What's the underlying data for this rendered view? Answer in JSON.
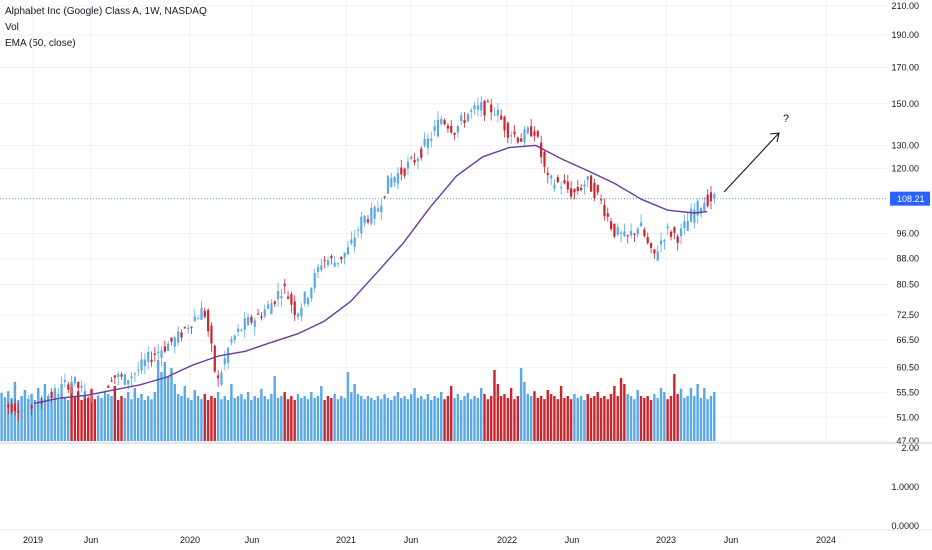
{
  "header": {
    "symbol_line": "Alphabet Inc (Google) Class A, 1W, NASDAQ",
    "volume_line": "Vol",
    "ema_line": "EMA (50, close)"
  },
  "colors": {
    "up": "#5aa8e6",
    "down": "#c9262f",
    "ema": "#6a3d9a",
    "price_line": "#3a8fd6",
    "price_badge": "#2962ff",
    "grid": "#eef0f3",
    "axis_text": "#131722"
  },
  "annotation": {
    "text": "?"
  },
  "chart_data": {
    "type": "line",
    "title": "Alphabet Inc (Google) Class A, 1W, NASDAQ",
    "price_scale": "log",
    "ylim": [
      47,
      210
    ],
    "y_ticks": [
      "210.00",
      "190.00",
      "170.00",
      "150.00",
      "130.00",
      "120.00",
      "108.21",
      "96.00",
      "88.00",
      "80.50",
      "72.50",
      "66.50",
      "60.50",
      "55.50",
      "51.00",
      "47.00"
    ],
    "current_price": "108.21",
    "volume_ticks": [
      "2.00",
      "1.0000",
      "0.0000"
    ],
    "x_ticks": [
      "2019",
      "Jun",
      "2020",
      "Jun",
      "2021",
      "Jun",
      "2022",
      "Jun",
      "2023",
      "Jun",
      "2024"
    ],
    "series": [
      {
        "name": "Price (close)",
        "x": [
          "2019-01",
          "2019-02",
          "2019-03",
          "2019-04",
          "2019-05",
          "2019-06",
          "2019-07",
          "2019-08",
          "2019-09",
          "2019-10",
          "2019-11",
          "2019-12",
          "2020-01",
          "2020-02",
          "2020-03",
          "2020-04",
          "2020-05",
          "2020-06",
          "2020-07",
          "2020-08",
          "2020-09",
          "2020-10",
          "2020-11",
          "2020-12",
          "2021-01",
          "2021-02",
          "2021-03",
          "2021-04",
          "2021-05",
          "2021-06",
          "2021-07",
          "2021-08",
          "2021-09",
          "2021-10",
          "2021-11",
          "2021-12",
          "2022-01",
          "2022-02",
          "2022-03",
          "2022-04",
          "2022-05",
          "2022-06",
          "2022-07",
          "2022-08",
          "2022-09",
          "2022-10",
          "2022-11",
          "2022-12",
          "2023-01",
          "2023-02",
          "2023-03",
          "2023-04"
        ],
        "values": [
          53,
          54,
          56,
          58,
          55,
          53,
          59,
          58,
          60,
          63,
          65,
          67,
          71,
          74,
          57,
          66,
          70,
          72,
          75,
          80,
          73,
          79,
          88,
          87,
          91,
          101,
          103,
          115,
          119,
          124,
          132,
          143,
          137,
          145,
          148,
          147,
          137,
          133,
          138,
          115,
          114,
          110,
          115,
          108,
          97,
          94,
          99,
          88,
          97,
          95,
          103,
          108
        ]
      },
      {
        "name": "EMA (50, close)",
        "x": [
          "2019-01",
          "2019-03",
          "2019-05",
          "2019-07",
          "2019-09",
          "2019-11",
          "2020-01",
          "2020-03",
          "2020-05",
          "2020-07",
          "2020-09",
          "2020-11",
          "2021-01",
          "2021-03",
          "2021-05",
          "2021-07",
          "2021-09",
          "2021-11",
          "2022-01",
          "2022-03",
          "2022-05",
          "2022-07",
          "2022-09",
          "2022-11",
          "2023-01",
          "2023-03",
          "2023-04"
        ],
        "values": [
          53.5,
          54.5,
          55,
          56,
          57,
          58.5,
          61,
          63,
          64,
          66,
          68,
          71,
          76,
          84,
          93,
          105,
          117,
          125,
          129,
          130,
          124,
          119,
          114,
          108,
          104,
          103,
          103.5
        ]
      }
    ],
    "volume_values": [
      1.08,
      0.97,
      1.12,
      0.95,
      1.35,
      0.9,
      1.0,
      1.15,
      0.92,
      1.05,
      0.9,
      1.2,
      0.95,
      1.3,
      1.0,
      0.88,
      1.15,
      0.92,
      1.05,
      0.95,
      0.9,
      1.3,
      1.0,
      1.12,
      0.9,
      1.0,
      0.95,
      1.18,
      0.92,
      1.0,
      0.95,
      0.9,
      1.05,
      1.0,
      1.25,
      0.9,
      1.0,
      0.95,
      1.1,
      0.92,
      1.2,
      0.95,
      1.05,
      0.9,
      1.0,
      0.92,
      1.1,
      1.9,
      1.6,
      1.85,
      1.5,
      1.7,
      1.3,
      1.05,
      1.0,
      1.25,
      0.95,
      0.9,
      1.15,
      1.0,
      0.92,
      1.05,
      0.9,
      1.0,
      0.95,
      1.1,
      0.92,
      1.0,
      0.9,
      1.3,
      0.95,
      1.0,
      1.05,
      0.92,
      1.1,
      0.9,
      1.0,
      0.95,
      1.18,
      1.0,
      0.92,
      1.05,
      1.5,
      0.95,
      1.0,
      1.1,
      0.92,
      1.0,
      0.9,
      1.05,
      0.95,
      1.0,
      0.92,
      1.1,
      0.95,
      1.0,
      1.25,
      0.9,
      1.0,
      0.95,
      1.05,
      0.92,
      1.0,
      0.95,
      1.6,
      1.1,
      1.3,
      1.05,
      1.0,
      0.92,
      1.0,
      0.95,
      0.9,
      1.0,
      0.92,
      1.05,
      0.95,
      0.9,
      1.0,
      1.1,
      0.95,
      1.0,
      0.92,
      1.05,
      1.2,
      0.95,
      1.0,
      0.92,
      1.05,
      0.9,
      1.0,
      0.95,
      1.1,
      0.92,
      1.0,
      1.25,
      0.95,
      1.05,
      0.9,
      1.0,
      1.08,
      0.92,
      1.0,
      0.95,
      1.2,
      1.05,
      0.92,
      1.0,
      1.65,
      1.3,
      1.0,
      1.05,
      0.95,
      1.2,
      0.92,
      1.0,
      1.7,
      1.35,
      1.05,
      1.0,
      1.12,
      0.95,
      1.0,
      0.92,
      1.15,
      1.05,
      1.0,
      0.92,
      1.25,
      0.95,
      1.0,
      0.92,
      1.05,
      0.95,
      1.0,
      0.9,
      1.05,
      0.95,
      1.0,
      1.1,
      0.95,
      1.0,
      0.92,
      1.05,
      1.25,
      1.0,
      1.45,
      1.3,
      1.05,
      1.0,
      0.92,
      1.15,
      1.0,
      0.95,
      1.0,
      0.9,
      1.05,
      0.95,
      1.2,
      1.1,
      0.92,
      1.0,
      1.55,
      1.05,
      1.18,
      0.95,
      1.0,
      1.2,
      1.0,
      1.3,
      0.95,
      1.2,
      0.92,
      1.0,
      1.1
    ]
  }
}
